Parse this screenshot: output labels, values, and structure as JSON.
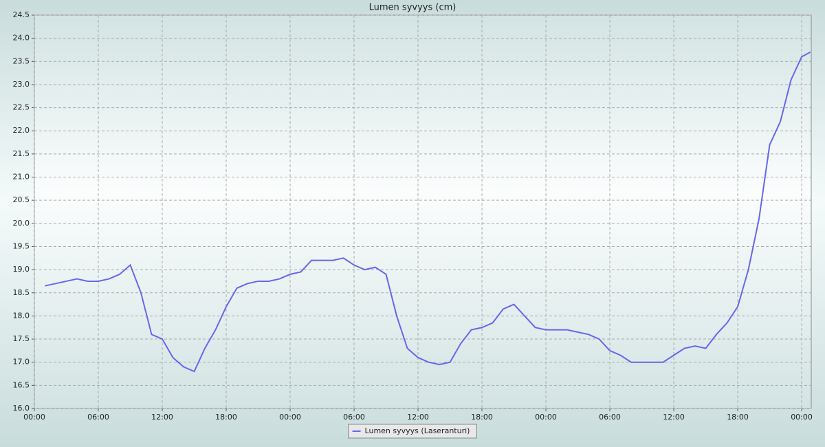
{
  "chart_data": {
    "type": "line",
    "title": "Lumen syvyys (cm)",
    "x": [
      1,
      2,
      3,
      4,
      5,
      6,
      7,
      8,
      9,
      10,
      11,
      12,
      13,
      14,
      15,
      16,
      17,
      18,
      19,
      20,
      21,
      22,
      23,
      24,
      25,
      26,
      27,
      28,
      29,
      30,
      31,
      32,
      33,
      34,
      35,
      36,
      37,
      38,
      39,
      40,
      41,
      42,
      43,
      44,
      45,
      46,
      47,
      48,
      49,
      50,
      51,
      52,
      53,
      54,
      55,
      56,
      57,
      58,
      59,
      60,
      61,
      62,
      63,
      64,
      65,
      66,
      67,
      68,
      69,
      70,
      71,
      72,
      72.8
    ],
    "series": [
      {
        "name": "Lumen syvyys (Laseranturi)",
        "color": "#6666ee",
        "values": [
          18.65,
          18.7,
          18.75,
          18.8,
          18.75,
          18.75,
          18.8,
          18.9,
          19.1,
          18.5,
          17.6,
          17.5,
          17.1,
          16.9,
          16.8,
          17.3,
          17.7,
          18.2,
          18.6,
          18.7,
          18.75,
          18.75,
          18.8,
          18.9,
          18.95,
          19.2,
          19.2,
          19.2,
          19.25,
          19.1,
          19.0,
          19.05,
          18.9,
          18.0,
          17.3,
          17.1,
          17.0,
          16.95,
          17.0,
          17.4,
          17.7,
          17.75,
          17.85,
          18.15,
          18.25,
          18.0,
          17.75,
          17.7,
          17.7,
          17.7,
          17.65,
          17.6,
          17.5,
          17.25,
          17.15,
          17.0,
          17.0,
          17.0,
          17.0,
          17.15,
          17.3,
          17.35,
          17.3,
          17.6,
          17.85,
          18.2,
          19.0,
          20.1,
          21.7,
          22.2,
          23.1,
          23.6,
          23.7
        ]
      }
    ],
    "xlim": [
      0,
      72.9
    ],
    "xticks": [
      {
        "value": 0,
        "label": "00:00"
      },
      {
        "value": 6,
        "label": "06:00"
      },
      {
        "value": 12,
        "label": "12:00"
      },
      {
        "value": 18,
        "label": "18:00"
      },
      {
        "value": 24,
        "label": "00:00"
      },
      {
        "value": 30,
        "label": "06:00"
      },
      {
        "value": 36,
        "label": "12:00"
      },
      {
        "value": 42,
        "label": "18:00"
      },
      {
        "value": 48,
        "label": "00:00"
      },
      {
        "value": 54,
        "label": "06:00"
      },
      {
        "value": 60,
        "label": "12:00"
      },
      {
        "value": 66,
        "label": "18:00"
      },
      {
        "value": 72,
        "label": "00:00"
      }
    ],
    "ylim": [
      16,
      24.5
    ],
    "yticks": [
      {
        "value": 16,
        "label": "16.0"
      },
      16.5,
      {
        "value": 17,
        "label": "17.0"
      },
      17.5,
      {
        "value": 18,
        "label": "18.0"
      },
      18.5,
      {
        "value": 19,
        "label": "19.0"
      },
      19.5,
      {
        "value": 20,
        "label": "20.0"
      },
      20.5,
      {
        "value": 21,
        "label": "21.0"
      },
      21.5,
      {
        "value": 22,
        "label": "22.0"
      },
      22.5,
      {
        "value": 23,
        "label": "23.0"
      },
      23.5,
      {
        "value": 24,
        "label": "24.0"
      },
      24.5
    ],
    "grid": true,
    "legend": "bottom"
  }
}
